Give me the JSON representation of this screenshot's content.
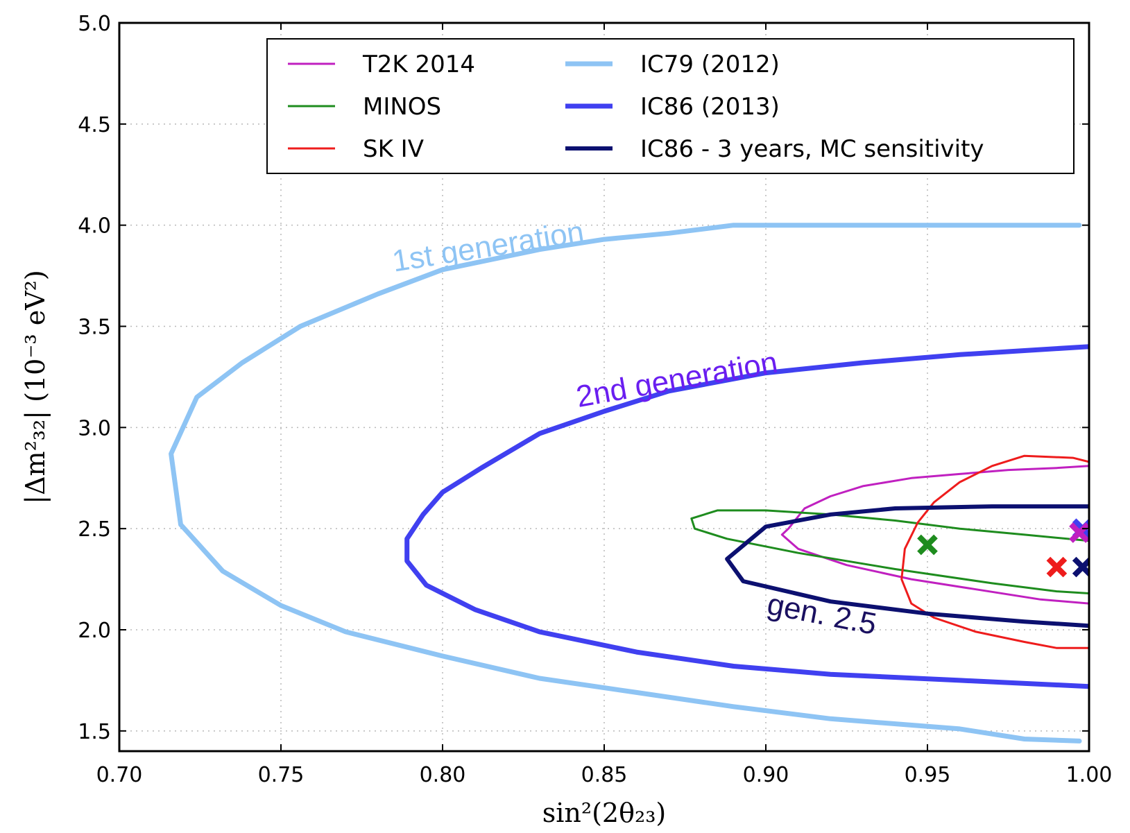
{
  "chart_data": {
    "type": "line",
    "xlabel": "sin²(2θ₂₃)",
    "ylabel": "|Δm²₃₂| (10⁻³ eV²)",
    "xlim": [
      0.7,
      1.0
    ],
    "ylim": [
      1.4,
      5.0
    ],
    "xticks": [
      "0.70",
      "0.75",
      "0.80",
      "0.85",
      "0.90",
      "0.95",
      "1.00"
    ],
    "yticks": [
      "1.5",
      "2.0",
      "2.5",
      "3.0",
      "3.5",
      "4.0",
      "4.5",
      "5.0"
    ],
    "grid": true,
    "legend_position": "top-right",
    "series": [
      {
        "name": "T2K 2014",
        "color": "#c020c0",
        "width": 3,
        "points": [
          [
            1.0,
            2.81
          ],
          [
            0.99,
            2.8
          ],
          [
            0.975,
            2.79
          ],
          [
            0.96,
            2.77
          ],
          [
            0.945,
            2.75
          ],
          [
            0.93,
            2.71
          ],
          [
            0.92,
            2.66
          ],
          [
            0.912,
            2.6
          ],
          [
            0.907,
            2.5
          ],
          [
            0.905,
            2.47
          ],
          [
            0.91,
            2.4
          ],
          [
            0.925,
            2.32
          ],
          [
            0.945,
            2.25
          ],
          [
            0.965,
            2.2
          ],
          [
            0.985,
            2.15
          ],
          [
            1.0,
            2.13
          ]
        ]
      },
      {
        "name": "MINOS",
        "color": "#1e8c1e",
        "width": 3,
        "points": [
          [
            1.0,
            2.44
          ],
          [
            0.98,
            2.47
          ],
          [
            0.96,
            2.5
          ],
          [
            0.94,
            2.54
          ],
          [
            0.92,
            2.57
          ],
          [
            0.9,
            2.59
          ],
          [
            0.885,
            2.59
          ],
          [
            0.877,
            2.55
          ],
          [
            0.878,
            2.5
          ],
          [
            0.888,
            2.45
          ],
          [
            0.91,
            2.38
          ],
          [
            0.94,
            2.3
          ],
          [
            0.97,
            2.23
          ],
          [
            0.99,
            2.19
          ],
          [
            1.0,
            2.18
          ]
        ]
      },
      {
        "name": "SK IV",
        "color": "#ee1c1c",
        "width": 3,
        "points": [
          [
            1.0,
            2.83
          ],
          [
            0.995,
            2.85
          ],
          [
            0.98,
            2.86
          ],
          [
            0.97,
            2.81
          ],
          [
            0.96,
            2.73
          ],
          [
            0.952,
            2.63
          ],
          [
            0.947,
            2.53
          ],
          [
            0.943,
            2.4
          ],
          [
            0.942,
            2.25
          ],
          [
            0.945,
            2.13
          ],
          [
            0.952,
            2.06
          ],
          [
            0.965,
            1.99
          ],
          [
            0.98,
            1.94
          ],
          [
            0.99,
            1.91
          ],
          [
            1.0,
            1.91
          ]
        ]
      },
      {
        "name": "IC79 (2012)",
        "color": "#8ec4f4",
        "width": 7,
        "points": [
          [
            0.997,
            4.0
          ],
          [
            0.98,
            4.0
          ],
          [
            0.96,
            4.0
          ],
          [
            0.93,
            4.0
          ],
          [
            0.89,
            4.0
          ],
          [
            0.87,
            3.96
          ],
          [
            0.85,
            3.93
          ],
          [
            0.83,
            3.88
          ],
          [
            0.8,
            3.78
          ],
          [
            0.78,
            3.66
          ],
          [
            0.756,
            3.5
          ],
          [
            0.738,
            3.32
          ],
          [
            0.724,
            3.15
          ],
          [
            0.716,
            2.87
          ],
          [
            0.719,
            2.52
          ],
          [
            0.732,
            2.29
          ],
          [
            0.75,
            2.12
          ],
          [
            0.77,
            1.99
          ],
          [
            0.8,
            1.87
          ],
          [
            0.83,
            1.76
          ],
          [
            0.86,
            1.69
          ],
          [
            0.89,
            1.62
          ],
          [
            0.92,
            1.56
          ],
          [
            0.96,
            1.51
          ],
          [
            0.98,
            1.46
          ],
          [
            0.997,
            1.45
          ]
        ]
      },
      {
        "name": "IC86 (2013)",
        "color": "#4040f0",
        "width": 7,
        "points": [
          [
            1.0,
            3.4
          ],
          [
            0.98,
            3.38
          ],
          [
            0.96,
            3.36
          ],
          [
            0.93,
            3.32
          ],
          [
            0.9,
            3.27
          ],
          [
            0.87,
            3.18
          ],
          [
            0.85,
            3.08
          ],
          [
            0.83,
            2.97
          ],
          [
            0.812,
            2.8
          ],
          [
            0.8,
            2.68
          ],
          [
            0.794,
            2.57
          ],
          [
            0.789,
            2.45
          ],
          [
            0.789,
            2.34
          ],
          [
            0.795,
            2.22
          ],
          [
            0.81,
            2.1
          ],
          [
            0.83,
            1.99
          ],
          [
            0.86,
            1.89
          ],
          [
            0.89,
            1.82
          ],
          [
            0.92,
            1.78
          ],
          [
            0.96,
            1.75
          ],
          [
            1.0,
            1.72
          ]
        ]
      },
      {
        "name": "IC86 - 3 years, MC sensitivity",
        "color": "#0c1070",
        "width": 6,
        "points": [
          [
            1.0,
            2.61
          ],
          [
            0.97,
            2.61
          ],
          [
            0.94,
            2.6
          ],
          [
            0.92,
            2.57
          ],
          [
            0.9,
            2.51
          ],
          [
            0.888,
            2.35
          ],
          [
            0.893,
            2.24
          ],
          [
            0.92,
            2.14
          ],
          [
            0.95,
            2.08
          ],
          [
            0.98,
            2.04
          ],
          [
            1.0,
            2.02
          ]
        ]
      }
    ],
    "markers": [
      {
        "label": "MINOS best fit",
        "x": 0.95,
        "y": 2.42,
        "color": "#1e8c1e"
      },
      {
        "label": "SK IV best fit",
        "x": 0.99,
        "y": 2.31,
        "color": "#ee1c1c"
      },
      {
        "label": "IC86 3yr best fit",
        "x": 0.998,
        "y": 2.31,
        "color": "#0c1070"
      },
      {
        "label": "IC86 2013 best fit",
        "x": 0.998,
        "y": 2.5,
        "color": "#4040f0"
      },
      {
        "label": "T2K best fit",
        "x": 0.997,
        "y": 2.48,
        "color": "#c020c0"
      }
    ],
    "annotations": [
      {
        "text": "1st generation",
        "x": 0.785,
        "y": 3.77,
        "rotate": -9,
        "color": "#8ec4f4"
      },
      {
        "text": "2nd generation",
        "x": 0.842,
        "y": 3.1,
        "rotate": -10,
        "color": "#6a1ef0"
      },
      {
        "text": "gen. 2.5",
        "x": 0.9,
        "y": 2.08,
        "rotate": 11,
        "color": "#1a1060"
      }
    ]
  }
}
